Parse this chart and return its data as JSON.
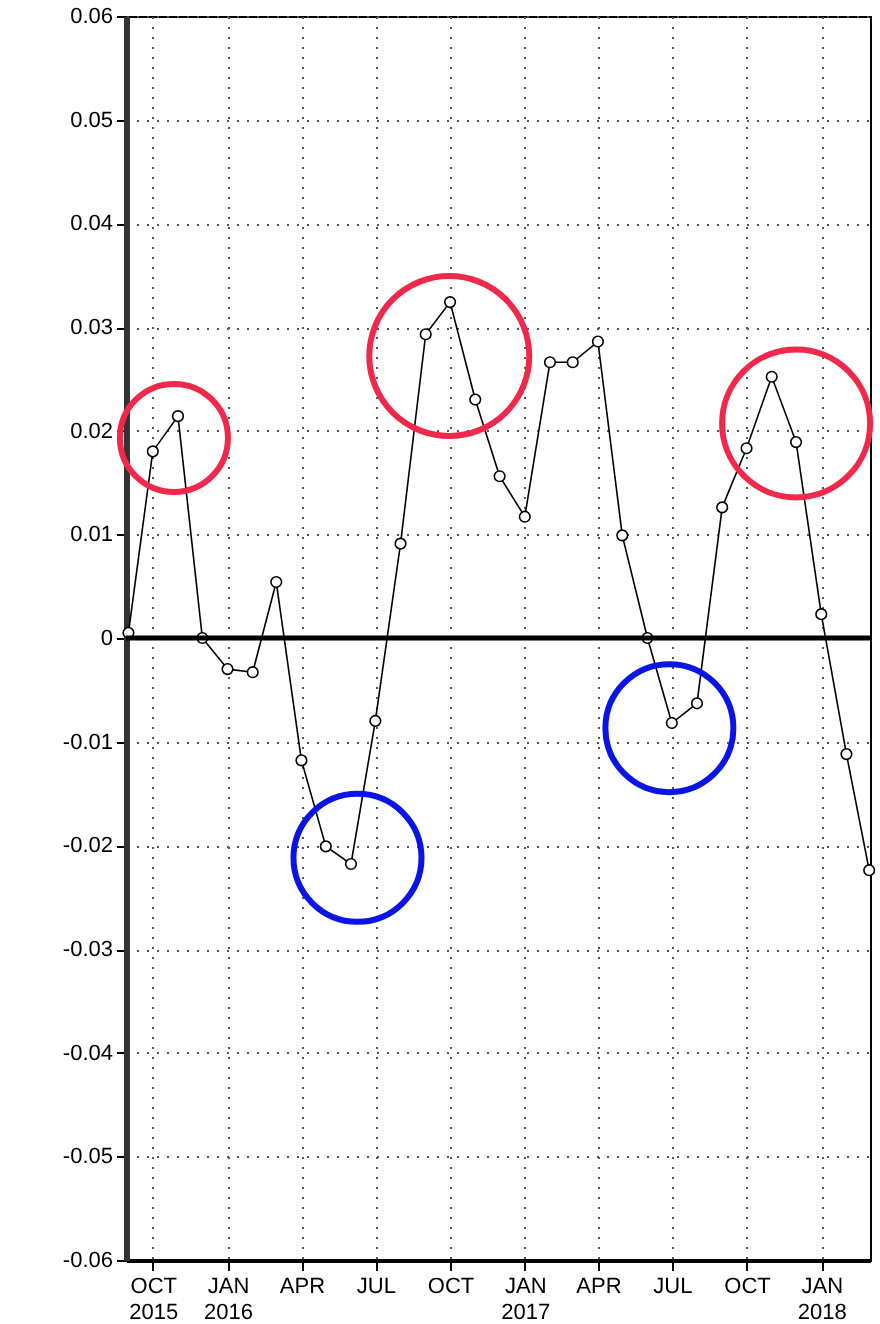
{
  "chart_data": {
    "type": "line",
    "x": [
      "2015-09",
      "2015-10",
      "2015-11",
      "2015-12",
      "2016-01",
      "2016-02",
      "2016-03",
      "2016-04",
      "2016-05",
      "2016-06",
      "2016-07",
      "2016-08",
      "2016-09",
      "2016-10",
      "2016-11",
      "2016-12",
      "2017-01",
      "2017-02",
      "2017-03",
      "2017-04",
      "2017-05",
      "2017-06",
      "2017-07",
      "2017-08",
      "2017-09",
      "2017-10",
      "2017-11",
      "2017-12",
      "2018-01",
      "2018-02",
      "2018-03"
    ],
    "series": [
      {
        "color": "#000000",
        "values": [
          0.0005,
          0.018,
          0.0214,
          0,
          -0.003,
          -0.0033,
          0.0054,
          -0.0118,
          -0.0201,
          -0.0218,
          -0.008,
          0.0091,
          0.0293,
          0.0324,
          0.023,
          0.0156,
          0.0117,
          0.0266,
          0.0266,
          0.0286,
          0.0099,
          0,
          -0.0082,
          -0.0063,
          0.0126,
          0.0183,
          0.0252,
          0.0189,
          0.0023,
          -0.0112,
          -0.0224
        ]
      }
    ],
    "xlim": [
      "2015-08-29",
      "2018-03-02"
    ],
    "xticks": [
      {
        "value": "2015-10",
        "label": "OCT\n2015"
      },
      {
        "value": "2016-01",
        "label": "JAN\n2016"
      },
      {
        "value": "2016-04",
        "label": "APR"
      },
      {
        "value": "2016-07",
        "label": "JUL"
      },
      {
        "value": "2016-10",
        "label": "OCT"
      },
      {
        "value": "2017-01",
        "label": "JAN\n2017"
      },
      {
        "value": "2017-04",
        "label": "APR"
      },
      {
        "value": "2017-07",
        "label": "JUL"
      },
      {
        "value": "2017-10",
        "label": "OCT"
      },
      {
        "value": "2018-01",
        "label": "JAN\n2018"
      }
    ],
    "ylim": [
      -0.06,
      0.06
    ],
    "yticks": [
      -0.06,
      -0.05,
      -0.04,
      -0.03,
      -0.02,
      -0.01,
      0,
      0.01,
      0.02,
      0.03,
      0.04,
      0.05,
      0.06
    ],
    "ref_lines": [
      {
        "axis": "y",
        "value": 0,
        "color": "#000000"
      }
    ],
    "grid": true,
    "marker": "circle",
    "line_style": "solid"
  }
}
